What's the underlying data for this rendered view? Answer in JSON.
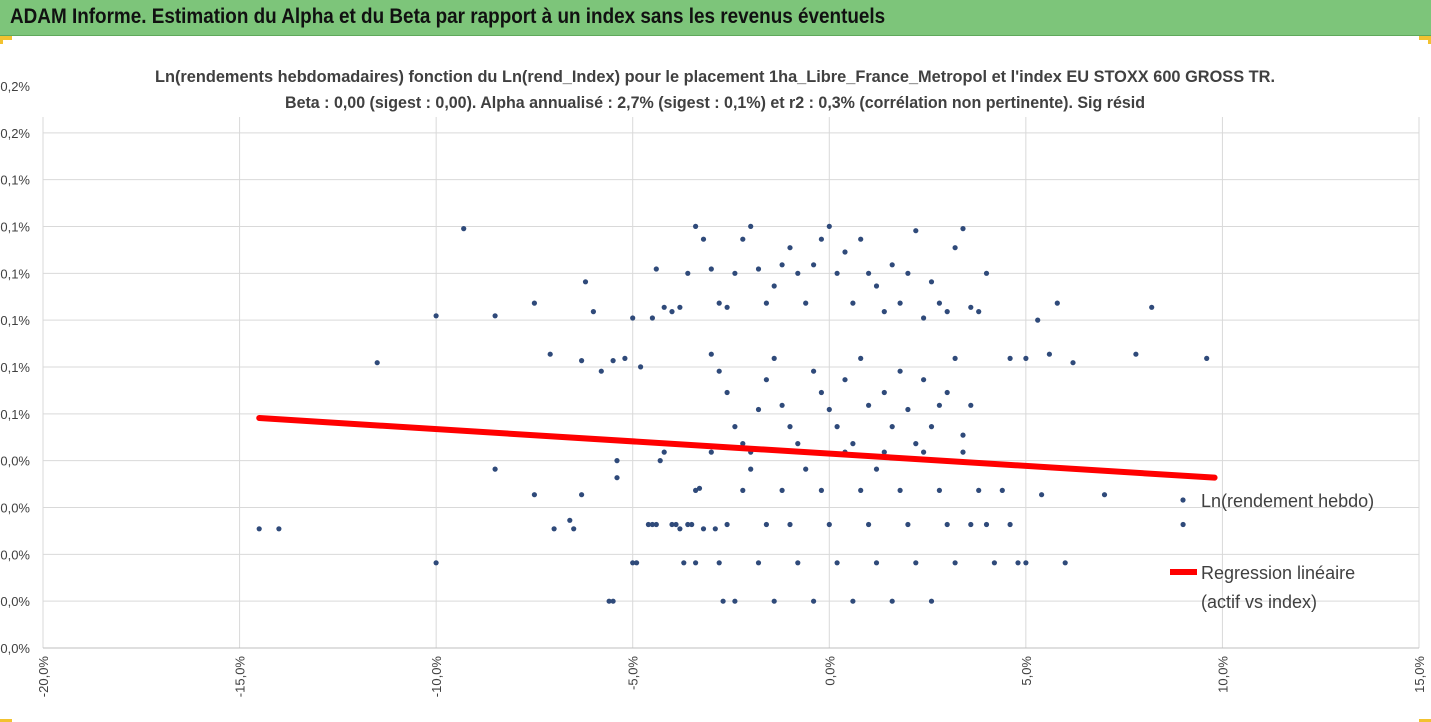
{
  "header": {
    "title": "ADAM Informe. Estimation du Alpha et du Beta par rapport à un index sans les revenus éventuels"
  },
  "colors": {
    "header_bg": "#7dc57a",
    "points": "#2f4a7a",
    "regression": "#ff0000",
    "grid": "#d9d9d9",
    "accent": "#f2c230"
  },
  "chart_data": {
    "type": "scatter",
    "title_line1": "Ln(rendements hebdomadaires) fonction du Ln(rend_Index) pour le placement 1ha_Libre_France_Metropol et l'index EU STOXX 600 GROSS TR.",
    "title_line2": "Beta : 0,00 (sigest : 0,00). Alpha annualisé : 2,7% (sigest : 0,1%) et r2 : 0,3% (corrélation non pertinente). Sig résid",
    "xlabel": "",
    "ylabel": "",
    "xlim": [
      -20,
      15
    ],
    "ylim": [
      0,
      0.24
    ],
    "grid": true,
    "legend_position": "right",
    "x_ticks": [
      "-20,0%",
      "-15,0%",
      "-10,0%",
      "-5,0%",
      "0,0%",
      "5,0%",
      "10,0%",
      "15,0%"
    ],
    "y_ticks": [
      "0,0%",
      "0,0%",
      "0,0%",
      "0,0%",
      "0,0%",
      "0,1%",
      "0,1%",
      "0,1%",
      "0,1%",
      "0,1%",
      "0,1%",
      "0,2%",
      "0,2%"
    ],
    "series": [
      {
        "name": "Ln(rendement hebdo)",
        "kind": "scatter",
        "points": [
          [
            -14.5,
            0.056
          ],
          [
            -14.0,
            0.056
          ],
          [
            -10.0,
            0.04
          ],
          [
            -8.5,
            0.084
          ],
          [
            -7.5,
            0.072
          ],
          [
            -7.0,
            0.056
          ],
          [
            -6.6,
            0.06
          ],
          [
            -6.5,
            0.056
          ],
          [
            -6.3,
            0.072
          ],
          [
            -5.6,
            0.022
          ],
          [
            -5.5,
            0.022
          ],
          [
            -5.4,
            0.08
          ],
          [
            -5.4,
            0.088
          ],
          [
            -5.0,
            0.04
          ],
          [
            -4.9,
            0.04
          ],
          [
            -4.6,
            0.058
          ],
          [
            -4.5,
            0.058
          ],
          [
            -4.4,
            0.058
          ],
          [
            -4.3,
            0.088
          ],
          [
            -4.2,
            0.092
          ],
          [
            -4.0,
            0.058
          ],
          [
            -3.9,
            0.058
          ],
          [
            -3.8,
            0.056
          ],
          [
            -3.7,
            0.04
          ],
          [
            -3.6,
            0.058
          ],
          [
            -3.5,
            0.058
          ],
          [
            -3.4,
            0.04
          ],
          [
            -3.4,
            0.074
          ],
          [
            -3.3,
            0.075
          ],
          [
            -3.2,
            0.056
          ],
          [
            -3.0,
            0.092
          ],
          [
            -2.9,
            0.056
          ],
          [
            -2.8,
            0.04
          ],
          [
            -2.7,
            0.022
          ],
          [
            -2.6,
            0.058
          ],
          [
            -2.4,
            0.022
          ],
          [
            -2.2,
            0.074
          ],
          [
            -2.0,
            0.092
          ],
          [
            -1.8,
            0.04
          ],
          [
            -1.6,
            0.058
          ],
          [
            -1.4,
            0.022
          ],
          [
            -1.2,
            0.074
          ],
          [
            -1.0,
            0.058
          ],
          [
            -0.8,
            0.04
          ],
          [
            -0.6,
            0.092
          ],
          [
            -0.4,
            0.022
          ],
          [
            -0.2,
            0.074
          ],
          [
            0.0,
            0.058
          ],
          [
            0.2,
            0.04
          ],
          [
            0.4,
            0.092
          ],
          [
            0.6,
            0.022
          ],
          [
            0.8,
            0.074
          ],
          [
            1.0,
            0.058
          ],
          [
            1.2,
            0.04
          ],
          [
            1.4,
            0.092
          ],
          [
            1.6,
            0.022
          ],
          [
            1.8,
            0.074
          ],
          [
            2.0,
            0.058
          ],
          [
            2.2,
            0.04
          ],
          [
            2.4,
            0.092
          ],
          [
            2.6,
            0.022
          ],
          [
            2.8,
            0.074
          ],
          [
            3.0,
            0.058
          ],
          [
            3.2,
            0.04
          ],
          [
            3.4,
            0.092
          ],
          [
            3.6,
            0.058
          ],
          [
            3.8,
            0.074
          ],
          [
            4.0,
            0.058
          ],
          [
            4.2,
            0.04
          ],
          [
            4.4,
            0.074
          ],
          [
            4.6,
            0.058
          ],
          [
            4.8,
            0.04
          ],
          [
            5.0,
            0.04
          ],
          [
            5.4,
            0.072
          ],
          [
            6.0,
            0.04
          ],
          [
            7.0,
            0.072
          ],
          [
            9.0,
            0.058
          ],
          [
            -11.5,
            0.134
          ],
          [
            -10.0,
            0.156
          ],
          [
            -9.3,
            0.197
          ],
          [
            -8.5,
            0.156
          ],
          [
            -7.5,
            0.162
          ],
          [
            -7.1,
            0.138
          ],
          [
            -6.3,
            0.135
          ],
          [
            -6.2,
            0.172
          ],
          [
            -6.0,
            0.158
          ],
          [
            -5.8,
            0.13
          ],
          [
            -5.5,
            0.135
          ],
          [
            -5.2,
            0.136
          ],
          [
            -5.0,
            0.155
          ],
          [
            -4.8,
            0.132
          ],
          [
            -4.5,
            0.155
          ],
          [
            -4.4,
            0.178
          ],
          [
            -4.2,
            0.16
          ],
          [
            -4.0,
            0.158
          ],
          [
            -3.8,
            0.16
          ],
          [
            -3.6,
            0.176
          ],
          [
            -3.4,
            0.198
          ],
          [
            -3.2,
            0.192
          ],
          [
            -3.0,
            0.178
          ],
          [
            -2.8,
            0.162
          ],
          [
            -2.6,
            0.16
          ],
          [
            -2.4,
            0.176
          ],
          [
            -2.2,
            0.192
          ],
          [
            -2.0,
            0.198
          ],
          [
            -1.8,
            0.178
          ],
          [
            -1.6,
            0.162
          ],
          [
            -1.4,
            0.17
          ],
          [
            -1.2,
            0.18
          ],
          [
            -1.0,
            0.188
          ],
          [
            -0.8,
            0.176
          ],
          [
            -0.6,
            0.162
          ],
          [
            -0.4,
            0.18
          ],
          [
            -0.2,
            0.192
          ],
          [
            0.0,
            0.198
          ],
          [
            0.2,
            0.176
          ],
          [
            0.4,
            0.186
          ],
          [
            0.6,
            0.162
          ],
          [
            0.8,
            0.192
          ],
          [
            1.0,
            0.176
          ],
          [
            1.2,
            0.17
          ],
          [
            1.4,
            0.158
          ],
          [
            1.6,
            0.18
          ],
          [
            1.8,
            0.162
          ],
          [
            2.0,
            0.176
          ],
          [
            2.2,
            0.196
          ],
          [
            2.4,
            0.155
          ],
          [
            2.6,
            0.172
          ],
          [
            2.8,
            0.162
          ],
          [
            3.0,
            0.158
          ],
          [
            3.2,
            0.188
          ],
          [
            3.4,
            0.197
          ],
          [
            3.6,
            0.16
          ],
          [
            3.8,
            0.158
          ],
          [
            4.0,
            0.176
          ],
          [
            4.6,
            0.136
          ],
          [
            5.0,
            0.136
          ],
          [
            5.3,
            0.154
          ],
          [
            5.6,
            0.138
          ],
          [
            5.8,
            0.162
          ],
          [
            6.2,
            0.134
          ],
          [
            7.8,
            0.138
          ],
          [
            8.2,
            0.16
          ],
          [
            9.6,
            0.136
          ],
          [
            -3.0,
            0.138
          ],
          [
            -2.8,
            0.13
          ],
          [
            -2.6,
            0.12
          ],
          [
            -2.4,
            0.104
          ],
          [
            -2.2,
            0.096
          ],
          [
            -2.0,
            0.084
          ],
          [
            -1.8,
            0.112
          ],
          [
            -1.6,
            0.126
          ],
          [
            -1.4,
            0.136
          ],
          [
            -1.2,
            0.114
          ],
          [
            -1.0,
            0.104
          ],
          [
            -0.8,
            0.096
          ],
          [
            -0.6,
            0.084
          ],
          [
            -0.4,
            0.13
          ],
          [
            -0.2,
            0.12
          ],
          [
            0.0,
            0.112
          ],
          [
            0.2,
            0.104
          ],
          [
            0.4,
            0.126
          ],
          [
            0.6,
            0.096
          ],
          [
            0.8,
            0.136
          ],
          [
            1.0,
            0.114
          ],
          [
            1.2,
            0.084
          ],
          [
            1.4,
            0.12
          ],
          [
            1.6,
            0.104
          ],
          [
            1.8,
            0.13
          ],
          [
            2.0,
            0.112
          ],
          [
            2.2,
            0.096
          ],
          [
            2.4,
            0.126
          ],
          [
            2.6,
            0.104
          ],
          [
            2.8,
            0.114
          ],
          [
            3.0,
            0.12
          ],
          [
            3.2,
            0.136
          ],
          [
            3.4,
            0.1
          ],
          [
            3.6,
            0.114
          ]
        ]
      },
      {
        "name": "Regression linéaire",
        "name_line2": "(actif vs index)",
        "kind": "line",
        "points": [
          [
            -14.5,
            0.108
          ],
          [
            9.8,
            0.08
          ]
        ]
      }
    ]
  }
}
